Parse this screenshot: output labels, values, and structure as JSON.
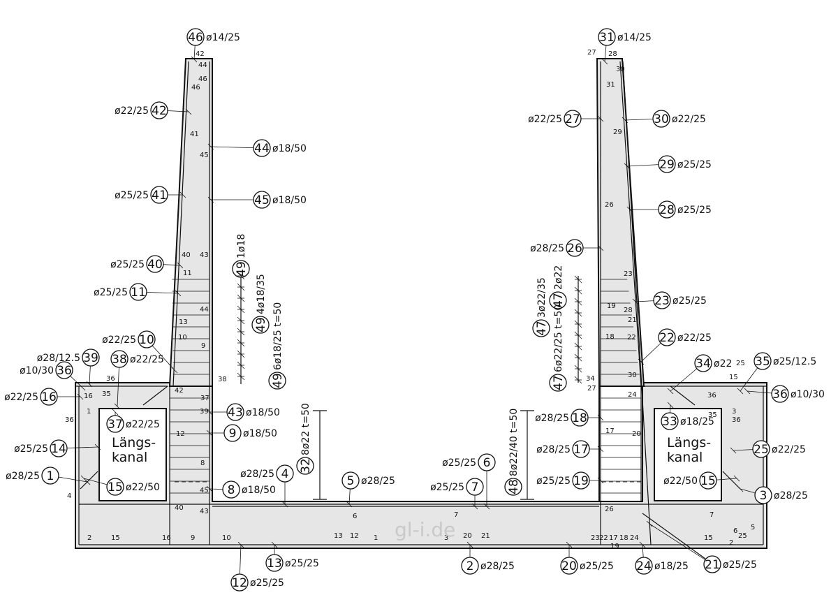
{
  "watermark": "gl-i.de",
  "rooms": {
    "left_line1": "Längs-",
    "left_line2": "kanal",
    "right_line1": "Längs-",
    "right_line2": "kanal"
  },
  "callouts": [
    {
      "id": "c46",
      "num": "46",
      "label": "ø14/25"
    },
    {
      "id": "c31",
      "num": "31",
      "label": "ø14/25"
    },
    {
      "id": "c42",
      "num": "42",
      "label": "ø22/25"
    },
    {
      "id": "c44",
      "num": "44",
      "label": "ø18/50"
    },
    {
      "id": "c41",
      "num": "41",
      "label": "ø25/25"
    },
    {
      "id": "c45",
      "num": "45",
      "label": "ø18/50"
    },
    {
      "id": "c40",
      "num": "40",
      "label": "ø25/25"
    },
    {
      "id": "c11",
      "num": "11",
      "label": "ø25/25"
    },
    {
      "id": "c10",
      "num": "10",
      "label": "ø22/25"
    },
    {
      "id": "c38",
      "num": "38",
      "label": "ø22/25"
    },
    {
      "id": "c39",
      "num": "39",
      "label": "ø28/12.5"
    },
    {
      "id": "c36l",
      "num": "36",
      "label": "ø10/30"
    },
    {
      "id": "c16",
      "num": "16",
      "label": "ø22/25"
    },
    {
      "id": "c37",
      "num": "37",
      "label": "ø22/25"
    },
    {
      "id": "c43",
      "num": "43",
      "label": "ø18/50"
    },
    {
      "id": "c9",
      "num": "9",
      "label": "ø18/50"
    },
    {
      "id": "c14",
      "num": "14",
      "label": "ø25/25"
    },
    {
      "id": "c1",
      "num": "1",
      "label": "ø28/25"
    },
    {
      "id": "c15l",
      "num": "15",
      "label": "ø22/50"
    },
    {
      "id": "c8",
      "num": "8",
      "label": "ø18/50"
    },
    {
      "id": "c4",
      "num": "4",
      "label": "ø28/25"
    },
    {
      "id": "c5",
      "num": "5",
      "label": "ø28/25"
    },
    {
      "id": "c6",
      "num": "6",
      "label": "ø25/25"
    },
    {
      "id": "c7",
      "num": "7",
      "label": "ø25/25"
    },
    {
      "id": "c27",
      "num": "27",
      "label": "ø22/25"
    },
    {
      "id": "c30",
      "num": "30",
      "label": "ø22/25"
    },
    {
      "id": "c29",
      "num": "29",
      "label": "ø25/25"
    },
    {
      "id": "c28",
      "num": "28",
      "label": "ø25/25"
    },
    {
      "id": "c26",
      "num": "26",
      "label": "ø28/25"
    },
    {
      "id": "c23",
      "num": "23",
      "label": "ø25/25"
    },
    {
      "id": "c22",
      "num": "22",
      "label": "ø22/25"
    },
    {
      "id": "c34",
      "num": "34",
      "label": "ø22"
    },
    {
      "id": "c35",
      "num": "35",
      "label": "ø25/12.5"
    },
    {
      "id": "c36r",
      "num": "36",
      "label": "ø10/30"
    },
    {
      "id": "c18",
      "num": "18",
      "label": "ø28/25"
    },
    {
      "id": "c33",
      "num": "33",
      "label": "ø18/25"
    },
    {
      "id": "c25",
      "num": "25",
      "label": "ø22/25"
    },
    {
      "id": "c17",
      "num": "17",
      "label": "ø28/25"
    },
    {
      "id": "c19",
      "num": "19",
      "label": "ø25/25"
    },
    {
      "id": "c15r",
      "num": "15",
      "label": "ø22/50"
    },
    {
      "id": "c3",
      "num": "3",
      "label": "ø28/25"
    },
    {
      "id": "c13",
      "num": "13",
      "label": "ø25/25"
    },
    {
      "id": "c12",
      "num": "12",
      "label": "ø25/25"
    },
    {
      "id": "c2",
      "num": "2",
      "label": "ø28/25"
    },
    {
      "id": "c20",
      "num": "20",
      "label": "ø25/25"
    },
    {
      "id": "c24",
      "num": "24",
      "label": "ø18/25"
    },
    {
      "id": "c21",
      "num": "21",
      "label": "ø25/25"
    }
  ],
  "vertical_callouts": [
    {
      "id": "v49a",
      "num": "49",
      "label": "1ø18"
    },
    {
      "id": "v49b",
      "num": "49",
      "label": "4ø18/35"
    },
    {
      "id": "v49c",
      "num": "49",
      "label": "6ø18/25 t=50"
    },
    {
      "id": "v47a",
      "num": "47",
      "label": "2ø22"
    },
    {
      "id": "v47b",
      "num": "47",
      "label": "3ø22/35"
    },
    {
      "id": "v47c",
      "num": "47",
      "label": "6ø22/25 t=50"
    },
    {
      "id": "v32",
      "num": "32",
      "label": "8ø22 t=50"
    },
    {
      "id": "v48",
      "num": "48",
      "label": "8ø22/40 t=50"
    }
  ],
  "bar_marks": [
    {
      "id": "m42",
      "text": "42"
    },
    {
      "id": "m44",
      "text": "44"
    },
    {
      "id": "m46",
      "text": "46"
    },
    {
      "id": "m46b",
      "text": "46"
    },
    {
      "id": "m41",
      "text": "41"
    },
    {
      "id": "m45",
      "text": "45"
    },
    {
      "id": "m40",
      "text": "40"
    },
    {
      "id": "m43",
      "text": "43"
    },
    {
      "id": "m11",
      "text": "11"
    },
    {
      "id": "m44b",
      "text": "44"
    },
    {
      "id": "m13",
      "text": "13"
    },
    {
      "id": "m10",
      "text": "10"
    },
    {
      "id": "m9",
      "text": "9"
    },
    {
      "id": "m38",
      "text": "38"
    },
    {
      "id": "m42b",
      "text": "42"
    },
    {
      "id": "m37",
      "text": "37"
    },
    {
      "id": "m39",
      "text": "39"
    },
    {
      "id": "m12",
      "text": "12"
    },
    {
      "id": "m8",
      "text": "8"
    },
    {
      "id": "m45b",
      "text": "45"
    },
    {
      "id": "m40b",
      "text": "40"
    },
    {
      "id": "m43b",
      "text": "43"
    },
    {
      "id": "m36",
      "text": "36"
    },
    {
      "id": "m16",
      "text": "16"
    },
    {
      "id": "m35",
      "text": "35"
    },
    {
      "id": "m1",
      "text": "1"
    },
    {
      "id": "m36b",
      "text": "36"
    },
    {
      "id": "m4",
      "text": "4"
    },
    {
      "id": "m2",
      "text": "2"
    },
    {
      "id": "m15",
      "text": "15"
    },
    {
      "id": "m16b",
      "text": "16"
    },
    {
      "id": "m9b",
      "text": "9"
    },
    {
      "id": "m10b",
      "text": "10"
    },
    {
      "id": "m13b",
      "text": "13"
    },
    {
      "id": "m12b",
      "text": "12"
    },
    {
      "id": "m1b",
      "text": "1"
    },
    {
      "id": "m3",
      "text": "3"
    },
    {
      "id": "m20",
      "text": "20"
    },
    {
      "id": "m21",
      "text": "21"
    },
    {
      "id": "m6",
      "text": "6"
    },
    {
      "id": "m7",
      "text": "7"
    },
    {
      "id": "m27",
      "text": "27"
    },
    {
      "id": "m28",
      "text": "28"
    },
    {
      "id": "m30",
      "text": "30"
    },
    {
      "id": "m31",
      "text": "31"
    },
    {
      "id": "m29",
      "text": "29"
    },
    {
      "id": "m26",
      "text": "26"
    },
    {
      "id": "m23",
      "text": "23"
    },
    {
      "id": "m19",
      "text": "19"
    },
    {
      "id": "m28b",
      "text": "28"
    },
    {
      "id": "m21b",
      "text": "21"
    },
    {
      "id": "m18",
      "text": "18"
    },
    {
      "id": "m22",
      "text": "22"
    },
    {
      "id": "m30b",
      "text": "30"
    },
    {
      "id": "m34",
      "text": "34"
    },
    {
      "id": "m27b",
      "text": "27"
    },
    {
      "id": "m24",
      "text": "24"
    },
    {
      "id": "m36c",
      "text": "36"
    },
    {
      "id": "m15b",
      "text": "15"
    },
    {
      "id": "m3b",
      "text": "3"
    },
    {
      "id": "m36d",
      "text": "36"
    },
    {
      "id": "m35b",
      "text": "35"
    },
    {
      "id": "m17",
      "text": "17"
    },
    {
      "id": "m20b",
      "text": "20"
    },
    {
      "id": "m26b",
      "text": "26"
    },
    {
      "id": "m7b",
      "text": "7"
    },
    {
      "id": "m6b",
      "text": "6"
    },
    {
      "id": "m5",
      "text": "5"
    },
    {
      "id": "m23b",
      "text": "23"
    },
    {
      "id": "m22b",
      "text": "22"
    },
    {
      "id": "m17b",
      "text": "17"
    },
    {
      "id": "m18b",
      "text": "18"
    },
    {
      "id": "m24b",
      "text": "24"
    },
    {
      "id": "m19b",
      "text": "19"
    },
    {
      "id": "m15c",
      "text": "15"
    },
    {
      "id": "m2b",
      "text": "2"
    },
    {
      "id": "m25",
      "text": "25"
    },
    {
      "id": "m25b",
      "text": "25"
    }
  ]
}
